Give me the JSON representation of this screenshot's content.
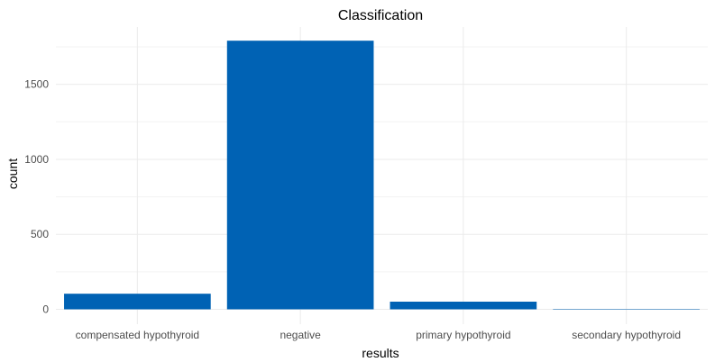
{
  "chart_data": {
    "type": "bar",
    "title": "Classification",
    "xlabel": "results",
    "ylabel": "count",
    "categories": [
      "compensated hypothyroid",
      "negative",
      "primary hypothyroid",
      "secondary hypothyroid"
    ],
    "values": [
      104,
      1791,
      51,
      1
    ],
    "ylim": [
      0,
      1880
    ],
    "yticks": [
      0,
      500,
      1000,
      1500
    ],
    "grid": true,
    "legend": "none",
    "colors": {
      "bar": "#0062b4",
      "background": "#ffffff",
      "grid": "#ebebeb"
    }
  }
}
